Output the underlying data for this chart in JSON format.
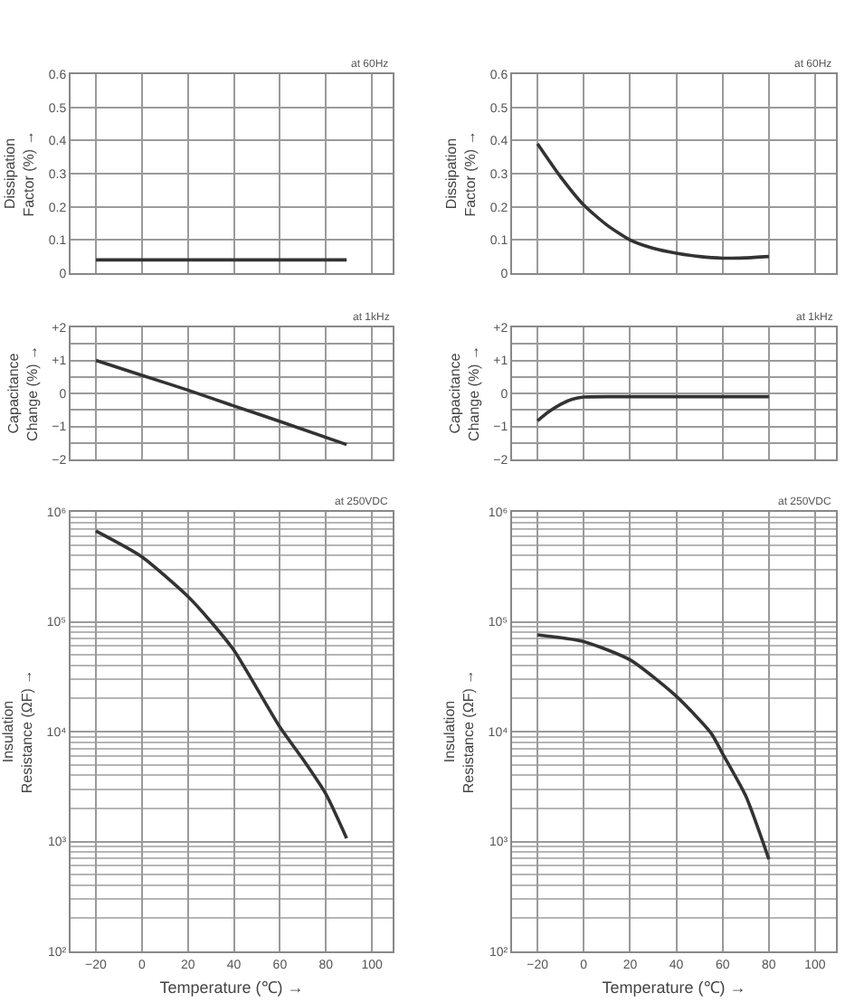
{
  "chart_data": [
    {
      "type": "line",
      "ylabel": "Dissipation\nFactor (%) →",
      "annotations": [
        "at 60Hz"
      ],
      "xlim": [
        -31,
        109
      ],
      "xticks": [
        -20,
        0,
        20,
        40,
        60,
        80,
        100
      ],
      "ylim": [
        0,
        0.6
      ],
      "yticks": [
        0,
        0.1,
        0.2,
        0.3,
        0.4,
        0.5,
        0.6
      ],
      "grid": true,
      "tick_labels": "y",
      "series": [
        {
          "color": "#333333",
          "x": [
            -20,
            89
          ],
          "values": [
            0.04,
            0.04
          ]
        }
      ]
    },
    {
      "type": "line",
      "ylabel": "Dissipation\nFactor (%) →",
      "annotations": [
        "at 60Hz"
      ],
      "xlim": [
        -31,
        109
      ],
      "xticks": [
        -20,
        0,
        20,
        40,
        60,
        80,
        100
      ],
      "ylim": [
        0,
        0.6
      ],
      "yticks": [
        0,
        0.1,
        0.2,
        0.3,
        0.4,
        0.5,
        0.6
      ],
      "grid": true,
      "tick_labels": "y",
      "series": [
        {
          "color": "#333333",
          "x": [
            -20,
            -10,
            0,
            10,
            20,
            30,
            40,
            50,
            60,
            70,
            80
          ],
          "values": [
            0.39,
            0.29,
            0.205,
            0.145,
            0.1,
            0.075,
            0.06,
            0.05,
            0.045,
            0.046,
            0.05
          ]
        }
      ]
    },
    {
      "type": "line",
      "ylabel": "Capacitance\nChange (%) →",
      "annotations": [
        "at 1kHz"
      ],
      "xlim": [
        -31,
        109
      ],
      "xticks": [
        -20,
        0,
        20,
        40,
        60,
        80,
        100
      ],
      "ylim": [
        -2,
        2
      ],
      "yticks": [
        {
          "value": -2,
          "label": "−2"
        },
        {
          "value": -1.5,
          "label": null
        },
        {
          "value": -1,
          "label": "−1"
        },
        {
          "value": -0.5,
          "label": null
        },
        0,
        {
          "value": 0.5,
          "label": null
        },
        {
          "value": 1,
          "label": "+1"
        },
        {
          "value": 1.5,
          "label": null
        },
        {
          "value": 2,
          "label": "+2"
        }
      ],
      "grid": true,
      "tick_labels": "y",
      "series": [
        {
          "color": "#333333",
          "x": [
            -20,
            0,
            20,
            40,
            60,
            89
          ],
          "values": [
            1.0,
            0.55,
            0.1,
            -0.38,
            -0.85,
            -1.55
          ]
        }
      ]
    },
    {
      "type": "line",
      "ylabel": "Capacitance\nChange (%) →",
      "annotations": [
        "at 1kHz"
      ],
      "xlim": [
        -31,
        109
      ],
      "xticks": [
        -20,
        0,
        20,
        40,
        60,
        80,
        100
      ],
      "ylim": [
        -2,
        2
      ],
      "yticks": [
        {
          "value": -2,
          "label": "−2"
        },
        {
          "value": -1.5,
          "label": null
        },
        {
          "value": -1,
          "label": "−1"
        },
        {
          "value": -0.5,
          "label": null
        },
        0,
        {
          "value": 0.5,
          "label": null
        },
        {
          "value": 1,
          "label": "+1"
        },
        {
          "value": 1.5,
          "label": null
        },
        {
          "value": 2,
          "label": "+2"
        }
      ],
      "grid": true,
      "tick_labels": "y",
      "series": [
        {
          "color": "#333333",
          "x": [
            -20,
            -15,
            -10,
            -5,
            0,
            20,
            40,
            60,
            80
          ],
          "values": [
            -0.83,
            -0.55,
            -0.33,
            -0.18,
            -0.11,
            -0.1,
            -0.1,
            -0.1,
            -0.1
          ]
        }
      ]
    },
    {
      "type": "line",
      "xlabel": "Temperature (℃) →",
      "ylabel": "Insulation\nResistance (ΩF) →",
      "annotations": [
        "at 250VDC"
      ],
      "xlim": [
        -31,
        109
      ],
      "xticks": [
        {
          "value": -20,
          "label": "−20"
        },
        0,
        20,
        40,
        60,
        80,
        100
      ],
      "ylim": [
        100,
        1000000
      ],
      "yticks": [
        {
          "value": 100,
          "label": "10²"
        },
        {
          "value": 1000,
          "label": "10³"
        },
        {
          "value": 10000,
          "label": "10⁴"
        },
        {
          "value": 100000,
          "label": "10⁵"
        },
        {
          "value": 1000000,
          "label": "10⁶"
        }
      ],
      "grid": true,
      "log": "y",
      "series": [
        {
          "color": "#333333",
          "x": [
            -20,
            0,
            20,
            30,
            40,
            60,
            70,
            80,
            89
          ],
          "values": [
            670000,
            390000,
            170000,
            100000,
            55000,
            11000,
            5600,
            2700,
            1070
          ]
        }
      ]
    },
    {
      "type": "line",
      "xlabel": "Temperature (℃) →",
      "ylabel": "Insulation\nResistance (ΩF) →",
      "annotations": [
        "at 250VDC"
      ],
      "xlim": [
        -31,
        109
      ],
      "xticks": [
        {
          "value": -20,
          "label": "−20"
        },
        0,
        20,
        40,
        60,
        80,
        100
      ],
      "ylim": [
        100,
        1000000
      ],
      "yticks": [
        {
          "value": 100,
          "label": "10²"
        },
        {
          "value": 1000,
          "label": "10³"
        },
        {
          "value": 10000,
          "label": "10⁴"
        },
        {
          "value": 100000,
          "label": "10⁵"
        },
        {
          "value": 1000000,
          "label": "10⁶"
        }
      ],
      "grid": true,
      "log": "y",
      "series": [
        {
          "color": "#333333",
          "x": [
            -20,
            0,
            20,
            40,
            55,
            60,
            70,
            80
          ],
          "values": [
            76000,
            66000,
            45000,
            21000,
            9700,
            6300,
            2600,
            690
          ]
        }
      ]
    }
  ]
}
